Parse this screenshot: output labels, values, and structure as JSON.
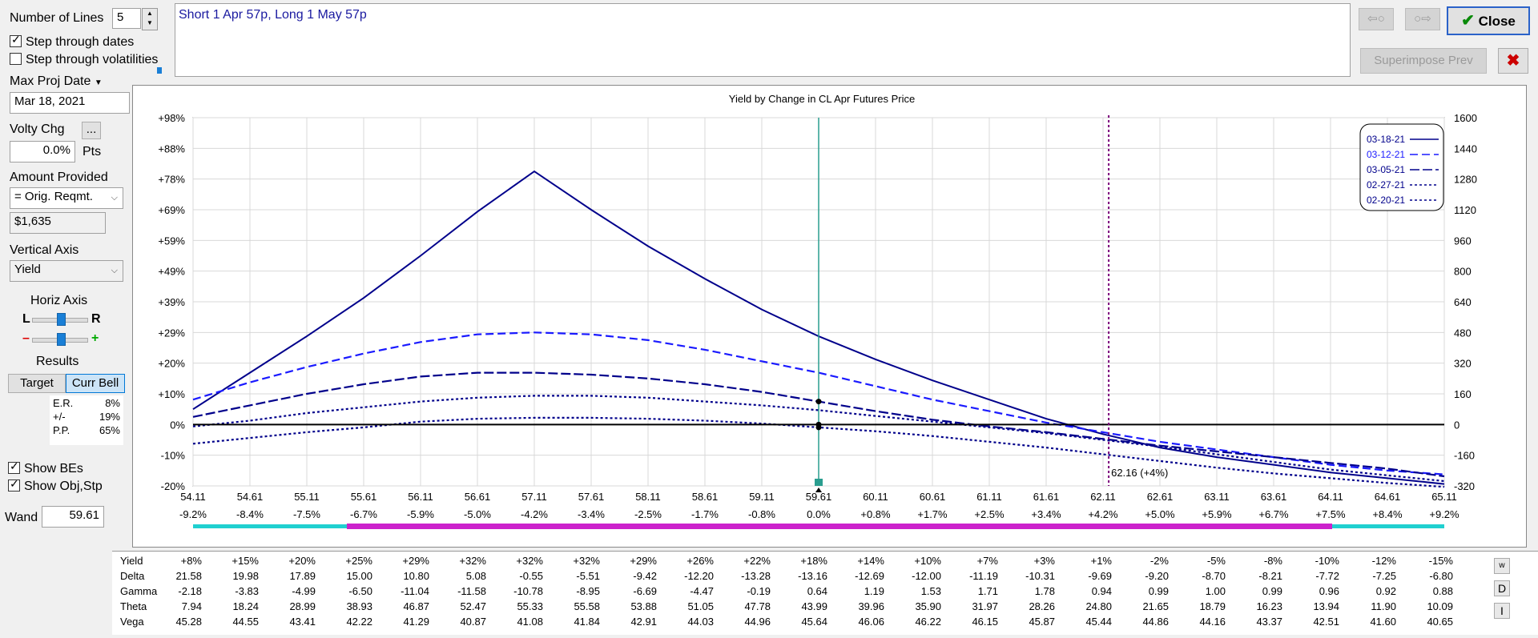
{
  "left_panel": {
    "number_of_lines_label": "Number of Lines",
    "number_of_lines_value": "5",
    "step_dates_label": "Step through dates",
    "step_dates_checked": true,
    "step_vols_label": "Step through volatilities",
    "step_vols_checked": false,
    "max_proj_date_label": "Max Proj Date",
    "max_proj_date_value": "Mar 18, 2021",
    "volty_chg_label": "Volty Chg",
    "volty_chg_button": "...",
    "volty_chg_value": "0.0%",
    "volty_chg_unit": "Pts",
    "amount_provided_label": "Amount Provided",
    "amount_provided_select": "= Orig. Reqmt.",
    "amount_value": "$1,635",
    "vertical_axis_label": "Vertical Axis",
    "vertical_axis_select": "Yield",
    "horiz_axis_label": "Horiz Axis",
    "horiz_l": "L",
    "horiz_r": "R",
    "minus": "–",
    "plus": "+",
    "results_label": "Results",
    "target_button": "Target",
    "curr_bell_button": "Curr Bell",
    "results": [
      {
        "k": "E.R.",
        "v": "8%"
      },
      {
        "k": "+/-",
        "v": "19%"
      },
      {
        "k": "P.P.",
        "v": "65%"
      }
    ],
    "show_bes_label": "Show BEs",
    "show_bes_checked": true,
    "show_objstp_label": "Show Obj,Stp",
    "show_objstp_checked": true,
    "wand_label": "Wand",
    "wand_value": "59.61"
  },
  "position_text": "Short 1 Apr 57p, Long 1 May 57p",
  "top_buttons": {
    "back": "⇦○",
    "forward": "○⇨",
    "close": "Close",
    "superimpose": "Superimpose Prev",
    "cancel": "✖"
  },
  "colors": {
    "curve": "#00008b",
    "curve2": "#1a1aff",
    "vline": "#2a9d8f",
    "beline": "#7a007a",
    "cyan": "#20d0d0",
    "magenta": "#cc22cc"
  },
  "chart_data": {
    "type": "line",
    "title": "Yield by Change in CL Apr Futures Price",
    "x": [
      54.11,
      54.61,
      55.11,
      55.61,
      56.11,
      56.61,
      57.11,
      57.61,
      58.11,
      58.61,
      59.11,
      59.61,
      60.11,
      60.61,
      61.11,
      61.61,
      62.11,
      62.61,
      63.11,
      63.61,
      64.11,
      64.61,
      65.11
    ],
    "x_pct": [
      "-9.2%",
      "-8.4%",
      "-7.5%",
      "-6.7%",
      "-5.9%",
      "-5.0%",
      "-4.2%",
      "-3.4%",
      "-2.5%",
      "-1.7%",
      "-0.8%",
      "0.0%",
      "+0.8%",
      "+1.7%",
      "+2.5%",
      "+3.4%",
      "+4.2%",
      "+5.0%",
      "+5.9%",
      "+6.7%",
      "+7.5%",
      "+8.4%",
      "+9.2%"
    ],
    "y_left_ticks": [
      "+98%",
      "+88%",
      "+78%",
      "+69%",
      "+59%",
      "+49%",
      "+39%",
      "+29%",
      "+20%",
      "+10%",
      "0%",
      "-10%",
      "-20%"
    ],
    "y_right_ticks": [
      "1600",
      "1440",
      "1280",
      "1120",
      "960",
      "800",
      "640",
      "480",
      "320",
      "160",
      "0",
      "-160",
      "-320"
    ],
    "ylim": [
      -320,
      1600
    ],
    "series": [
      {
        "name": "03-18-21",
        "dash": "",
        "values": [
          80,
          270,
          460,
          660,
          880,
          1110,
          1320,
          1120,
          930,
          760,
          600,
          460,
          340,
          230,
          130,
          30,
          -50,
          -120,
          -170,
          -210,
          -250,
          -280,
          -310
        ]
      },
      {
        "name": "03-12-21",
        "dash": "10,5",
        "values": [
          130,
          220,
          300,
          370,
          430,
          470,
          480,
          470,
          440,
          390,
          330,
          270,
          200,
          130,
          70,
          10,
          -40,
          -90,
          -130,
          -170,
          -210,
          -240,
          -260
        ]
      },
      {
        "name": "03-05-21",
        "dash": "12,4",
        "values": [
          40,
          100,
          160,
          210,
          250,
          270,
          270,
          260,
          240,
          210,
          170,
          120,
          70,
          25,
          -10,
          -40,
          -75,
          -110,
          -140,
          -170,
          -200,
          -230,
          -270
        ]
      },
      {
        "name": "02-27-21",
        "dash": "3,3",
        "values": [
          -10,
          20,
          60,
          90,
          120,
          140,
          150,
          150,
          140,
          120,
          100,
          75,
          45,
          15,
          -15,
          -45,
          -80,
          -115,
          -155,
          -195,
          -235,
          -265,
          -295
        ]
      },
      {
        "name": "02-20-21",
        "dash": "3,3",
        "values": [
          -100,
          -70,
          -40,
          -15,
          15,
          30,
          35,
          35,
          30,
          20,
          5,
          -15,
          -35,
          -60,
          -90,
          -120,
          -155,
          -190,
          -225,
          -255,
          -280,
          -305,
          -325
        ]
      }
    ],
    "breakeven_label": "62.16 (+4%)",
    "breakeven_x": 62.16,
    "wand_x": 59.61
  },
  "table": {
    "row_labels": [
      "Yield",
      "Delta",
      "Gamma",
      "Theta",
      "Vega"
    ],
    "rows": [
      [
        "+8%",
        "+15%",
        "+20%",
        "+25%",
        "+29%",
        "+32%",
        "+32%",
        "+32%",
        "+29%",
        "+26%",
        "+22%",
        "+18%",
        "+14%",
        "+10%",
        "+7%",
        "+3%",
        "+1%",
        "-2%",
        "-5%",
        "-8%",
        "-10%",
        "-12%",
        "-15%"
      ],
      [
        "21.58",
        "19.98",
        "17.89",
        "15.00",
        "10.80",
        "5.08",
        "-0.55",
        "-5.51",
        "-9.42",
        "-12.20",
        "-13.28",
        "-13.16",
        "-12.69",
        "-12.00",
        "-11.19",
        "-10.31",
        "-9.69",
        "-9.20",
        "-8.70",
        "-8.21",
        "-7.72",
        "-7.25",
        "-6.80"
      ],
      [
        "-2.18",
        "-3.83",
        "-4.99",
        "-6.50",
        "-11.04",
        "-11.58",
        "-10.78",
        "-8.95",
        "-6.69",
        "-4.47",
        "-0.19",
        "0.64",
        "1.19",
        "1.53",
        "1.71",
        "1.78",
        "0.94",
        "0.99",
        "1.00",
        "0.99",
        "0.96",
        "0.92",
        "0.88"
      ],
      [
        "7.94",
        "18.24",
        "28.99",
        "38.93",
        "46.87",
        "52.47",
        "55.33",
        "55.58",
        "53.88",
        "51.05",
        "47.78",
        "43.99",
        "39.96",
        "35.90",
        "31.97",
        "28.26",
        "24.80",
        "21.65",
        "18.79",
        "16.23",
        "13.94",
        "11.90",
        "10.09"
      ],
      [
        "45.28",
        "44.55",
        "43.41",
        "42.22",
        "41.29",
        "40.87",
        "41.08",
        "41.84",
        "42.91",
        "44.03",
        "44.96",
        "45.64",
        "46.06",
        "46.22",
        "46.15",
        "45.87",
        "45.44",
        "44.86",
        "44.16",
        "43.37",
        "42.51",
        "41.60",
        "40.65"
      ]
    ],
    "side_buttons": [
      "w",
      "D",
      "I"
    ]
  }
}
